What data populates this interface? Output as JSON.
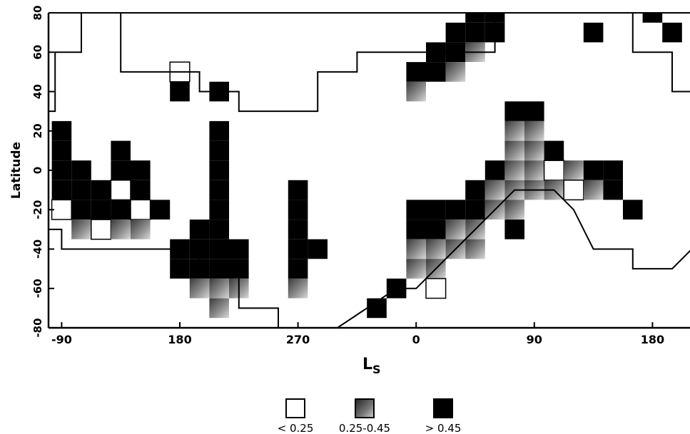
{
  "chart_data": {
    "type": "heatmap",
    "xlabel": "L",
    "xlabel_sub": "S",
    "ylabel": "Latitude",
    "xlim": [
      -100,
      420
    ],
    "ylim": [
      -80,
      80
    ],
    "grid": false,
    "cell": {
      "dLs": 15,
      "dLat": 10
    },
    "x_ticks": [
      {
        "value": -90,
        "label": "-90"
      },
      {
        "value": 0,
        "label": "180"
      },
      {
        "value": 90,
        "label": "270"
      },
      {
        "value": 180,
        "label": "0"
      },
      {
        "value": 270,
        "label": "90"
      },
      {
        "value": 360,
        "label": "180"
      }
    ],
    "y_ticks": [
      {
        "value": -80,
        "label": "-80"
      },
      {
        "value": -60,
        "label": "-60"
      },
      {
        "value": -40,
        "label": "-40"
      },
      {
        "value": -20,
        "label": "-20"
      },
      {
        "value": 0,
        "label": "0"
      },
      {
        "value": 20,
        "label": "20"
      },
      {
        "value": 40,
        "label": "40"
      },
      {
        "value": 60,
        "label": "60"
      },
      {
        "value": 80,
        "label": "80"
      }
    ],
    "legend": {
      "placement": "bottom-center",
      "items": [
        {
          "label": "< 0.25",
          "class": "low",
          "color": "#ffffff"
        },
        {
          "label": "0.25-0.45",
          "class": "mid",
          "color": "#7a7a7a"
        },
        {
          "label": "> 0.45",
          "class": "high",
          "color": "#000000"
        }
      ]
    },
    "coverage_boundary": {
      "upper": [
        [
          -100,
          30
        ],
        [
          -95,
          30
        ],
        [
          -95,
          60
        ],
        [
          -75,
          60
        ],
        [
          -75,
          80
        ],
        [
          -45,
          80
        ],
        [
          -45,
          50
        ],
        [
          -15,
          50
        ],
        [
          -15,
          50
        ],
        [
          15,
          50
        ],
        [
          15,
          40
        ],
        [
          45,
          40
        ],
        [
          45,
          30
        ],
        [
          105,
          30
        ],
        [
          105,
          50
        ],
        [
          135,
          50
        ],
        [
          135,
          60
        ],
        [
          240,
          60
        ],
        [
          240,
          80
        ],
        [
          345,
          80
        ],
        [
          345,
          60
        ],
        [
          375,
          60
        ],
        [
          375,
          40
        ],
        [
          420,
          40
        ]
      ],
      "lower": [
        [
          -100,
          -30
        ],
        [
          -90,
          -30
        ],
        [
          -90,
          -40
        ],
        [
          -30,
          -40
        ],
        [
          -30,
          -40
        ],
        [
          15,
          -40
        ],
        [
          15,
          -50
        ],
        [
          45,
          -50
        ],
        [
          45,
          -70
        ],
        [
          75,
          -70
        ],
        [
          75,
          -80
        ],
        [
          120,
          -80
        ],
        [
          165,
          -60
        ],
        [
          180,
          -60
        ],
        [
          195,
          -50
        ],
        [
          210,
          -40
        ],
        [
          240,
          -20
        ],
        [
          255,
          -10
        ],
        [
          270,
          -10
        ],
        [
          285,
          -10
        ],
        [
          300,
          -20
        ],
        [
          315,
          -40
        ],
        [
          345,
          -40
        ],
        [
          345,
          -50
        ],
        [
          360,
          -50
        ],
        [
          375,
          -50
        ],
        [
          390,
          -40
        ],
        [
          420,
          -40
        ]
      ]
    },
    "cells": [
      {
        "Ls": -90,
        "lat": 20,
        "level": "high"
      },
      {
        "Ls": -90,
        "lat": 10,
        "level": "high"
      },
      {
        "Ls": -90,
        "lat": 0,
        "level": "high"
      },
      {
        "Ls": -90,
        "lat": -10,
        "level": "high"
      },
      {
        "Ls": -90,
        "lat": -20,
        "level": "low"
      },
      {
        "Ls": -75,
        "lat": 0,
        "level": "high"
      },
      {
        "Ls": -75,
        "lat": -10,
        "level": "high"
      },
      {
        "Ls": -75,
        "lat": -20,
        "level": "high"
      },
      {
        "Ls": -75,
        "lat": -30,
        "level": "mid"
      },
      {
        "Ls": -60,
        "lat": -10,
        "level": "high"
      },
      {
        "Ls": -60,
        "lat": -20,
        "level": "high"
      },
      {
        "Ls": -60,
        "lat": -30,
        "level": "low"
      },
      {
        "Ls": -45,
        "lat": 10,
        "level": "high"
      },
      {
        "Ls": -45,
        "lat": 0,
        "level": "high"
      },
      {
        "Ls": -45,
        "lat": -10,
        "level": "low"
      },
      {
        "Ls": -45,
        "lat": -20,
        "level": "high"
      },
      {
        "Ls": -45,
        "lat": -30,
        "level": "mid"
      },
      {
        "Ls": -30,
        "lat": 0,
        "level": "high"
      },
      {
        "Ls": -30,
        "lat": -10,
        "level": "high"
      },
      {
        "Ls": -30,
        "lat": -20,
        "level": "low"
      },
      {
        "Ls": -30,
        "lat": -30,
        "level": "mid"
      },
      {
        "Ls": -15,
        "lat": -20,
        "level": "high"
      },
      {
        "Ls": 0,
        "lat": 50,
        "level": "low"
      },
      {
        "Ls": 0,
        "lat": 40,
        "level": "high"
      },
      {
        "Ls": 0,
        "lat": -40,
        "level": "high"
      },
      {
        "Ls": 0,
        "lat": -50,
        "level": "high"
      },
      {
        "Ls": 15,
        "lat": -30,
        "level": "high"
      },
      {
        "Ls": 15,
        "lat": -40,
        "level": "high"
      },
      {
        "Ls": 15,
        "lat": -50,
        "level": "high"
      },
      {
        "Ls": 15,
        "lat": -60,
        "level": "mid"
      },
      {
        "Ls": 30,
        "lat": 40,
        "level": "high"
      },
      {
        "Ls": 30,
        "lat": 20,
        "level": "high"
      },
      {
        "Ls": 30,
        "lat": 10,
        "level": "high"
      },
      {
        "Ls": 30,
        "lat": 0,
        "level": "high"
      },
      {
        "Ls": 30,
        "lat": -10,
        "level": "high"
      },
      {
        "Ls": 30,
        "lat": -20,
        "level": "high"
      },
      {
        "Ls": 30,
        "lat": -30,
        "level": "high"
      },
      {
        "Ls": 30,
        "lat": -40,
        "level": "high"
      },
      {
        "Ls": 30,
        "lat": -50,
        "level": "high"
      },
      {
        "Ls": 30,
        "lat": -60,
        "level": "mid"
      },
      {
        "Ls": 30,
        "lat": -70,
        "level": "mid"
      },
      {
        "Ls": 45,
        "lat": -40,
        "level": "high"
      },
      {
        "Ls": 45,
        "lat": -50,
        "level": "high"
      },
      {
        "Ls": 45,
        "lat": -60,
        "level": "mid"
      },
      {
        "Ls": 90,
        "lat": -10,
        "level": "high"
      },
      {
        "Ls": 90,
        "lat": -20,
        "level": "high"
      },
      {
        "Ls": 90,
        "lat": -30,
        "level": "high"
      },
      {
        "Ls": 90,
        "lat": -40,
        "level": "high"
      },
      {
        "Ls": 90,
        "lat": -50,
        "level": "high"
      },
      {
        "Ls": 90,
        "lat": -60,
        "level": "mid"
      },
      {
        "Ls": 105,
        "lat": -40,
        "level": "high"
      },
      {
        "Ls": 150,
        "lat": -70,
        "level": "high"
      },
      {
        "Ls": 165,
        "lat": -60,
        "level": "high"
      },
      {
        "Ls": 180,
        "lat": -20,
        "level": "high"
      },
      {
        "Ls": 180,
        "lat": -30,
        "level": "high"
      },
      {
        "Ls": 180,
        "lat": -40,
        "level": "mid"
      },
      {
        "Ls": 180,
        "lat": -50,
        "level": "mid"
      },
      {
        "Ls": 180,
        "lat": 50,
        "level": "high"
      },
      {
        "Ls": 180,
        "lat": 40,
        "level": "mid"
      },
      {
        "Ls": 195,
        "lat": -20,
        "level": "high"
      },
      {
        "Ls": 195,
        "lat": -30,
        "level": "high"
      },
      {
        "Ls": 195,
        "lat": -40,
        "level": "mid"
      },
      {
        "Ls": 195,
        "lat": -50,
        "level": "mid"
      },
      {
        "Ls": 195,
        "lat": -60,
        "level": "low"
      },
      {
        "Ls": 195,
        "lat": 60,
        "level": "high"
      },
      {
        "Ls": 195,
        "lat": 50,
        "level": "high"
      },
      {
        "Ls": 210,
        "lat": -20,
        "level": "high"
      },
      {
        "Ls": 210,
        "lat": -30,
        "level": "mid"
      },
      {
        "Ls": 210,
        "lat": -40,
        "level": "mid"
      },
      {
        "Ls": 210,
        "lat": 70,
        "level": "high"
      },
      {
        "Ls": 210,
        "lat": 60,
        "level": "high"
      },
      {
        "Ls": 210,
        "lat": 50,
        "level": "mid"
      },
      {
        "Ls": 225,
        "lat": -10,
        "level": "high"
      },
      {
        "Ls": 225,
        "lat": -20,
        "level": "high"
      },
      {
        "Ls": 225,
        "lat": -30,
        "level": "mid"
      },
      {
        "Ls": 225,
        "lat": -40,
        "level": "mid"
      },
      {
        "Ls": 225,
        "lat": 80,
        "level": "high"
      },
      {
        "Ls": 225,
        "lat": 70,
        "level": "high"
      },
      {
        "Ls": 225,
        "lat": 60,
        "level": "mid"
      },
      {
        "Ls": 240,
        "lat": 0,
        "level": "high"
      },
      {
        "Ls": 240,
        "lat": -10,
        "level": "mid"
      },
      {
        "Ls": 240,
        "lat": -20,
        "level": "mid"
      },
      {
        "Ls": 240,
        "lat": 80,
        "level": "high"
      },
      {
        "Ls": 240,
        "lat": 70,
        "level": "high"
      },
      {
        "Ls": 255,
        "lat": 30,
        "level": "high"
      },
      {
        "Ls": 255,
        "lat": 20,
        "level": "mid"
      },
      {
        "Ls": 255,
        "lat": 10,
        "level": "mid"
      },
      {
        "Ls": 255,
        "lat": 0,
        "level": "mid"
      },
      {
        "Ls": 255,
        "lat": -10,
        "level": "mid"
      },
      {
        "Ls": 255,
        "lat": -20,
        "level": "mid"
      },
      {
        "Ls": 255,
        "lat": -30,
        "level": "high"
      },
      {
        "Ls": 270,
        "lat": 30,
        "level": "high"
      },
      {
        "Ls": 270,
        "lat": 20,
        "level": "mid"
      },
      {
        "Ls": 270,
        "lat": 10,
        "level": "mid"
      },
      {
        "Ls": 270,
        "lat": 0,
        "level": "mid"
      },
      {
        "Ls": 270,
        "lat": -10,
        "level": "mid"
      },
      {
        "Ls": 285,
        "lat": 10,
        "level": "high"
      },
      {
        "Ls": 285,
        "lat": 0,
        "level": "low"
      },
      {
        "Ls": 285,
        "lat": -10,
        "level": "mid"
      },
      {
        "Ls": 300,
        "lat": 0,
        "level": "mid"
      },
      {
        "Ls": 300,
        "lat": -10,
        "level": "low"
      },
      {
        "Ls": 315,
        "lat": 0,
        "level": "high"
      },
      {
        "Ls": 315,
        "lat": -10,
        "level": "mid"
      },
      {
        "Ls": 315,
        "lat": 70,
        "level": "high"
      },
      {
        "Ls": 330,
        "lat": 0,
        "level": "high"
      },
      {
        "Ls": 330,
        "lat": -10,
        "level": "high"
      },
      {
        "Ls": 345,
        "lat": -20,
        "level": "high"
      },
      {
        "Ls": 360,
        "lat": 80,
        "level": "high"
      },
      {
        "Ls": 375,
        "lat": 70,
        "level": "high"
      },
      {
        "Ls": 420,
        "lat": 40,
        "level": "high"
      },
      {
        "Ls": 420,
        "lat": 30,
        "level": "mid"
      },
      {
        "Ls": 405,
        "lat": 40,
        "level": "high"
      },
      {
        "Ls": 405,
        "lat": 30,
        "level": "mid"
      },
      {
        "Ls": 405,
        "lat": 0,
        "level": "high"
      },
      {
        "Ls": 405,
        "lat": -10,
        "level": "mid"
      },
      {
        "Ls": 405,
        "lat": -20,
        "level": "mid"
      },
      {
        "Ls": 405,
        "lat": -30,
        "level": "mid"
      },
      {
        "Ls": 405,
        "lat": -40,
        "level": "high"
      },
      {
        "Ls": 420,
        "lat": 0,
        "level": "low"
      },
      {
        "Ls": 420,
        "lat": -10,
        "level": "low"
      },
      {
        "Ls": 420,
        "lat": -20,
        "level": "mid"
      },
      {
        "Ls": 420,
        "lat": -30,
        "level": "mid"
      },
      {
        "Ls": 420,
        "lat": -40,
        "level": "low"
      }
    ]
  }
}
